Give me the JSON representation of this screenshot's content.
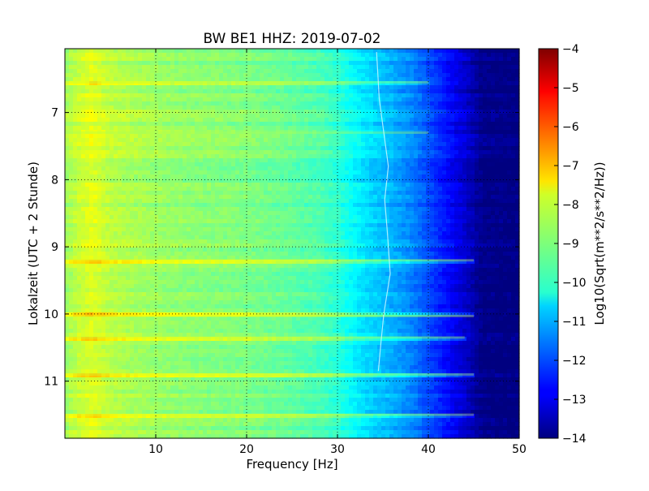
{
  "chart_data": {
    "type": "heatmap",
    "title": "BW BE1 HHZ: 2019-07-02",
    "xlabel": "Frequency [Hz]",
    "ylabel": "Lokalzeit (UTC + 2 Stunde)",
    "xlim": [
      0,
      50
    ],
    "ylim": [
      6.05,
      11.85
    ],
    "y_inverted": true,
    "x_ticks": [
      10,
      20,
      30,
      40,
      50
    ],
    "x_tick_labels": [
      "10",
      "20",
      "30",
      "40",
      "50"
    ],
    "y_ticks": [
      7,
      8,
      9,
      10,
      11
    ],
    "y_tick_labels": [
      "7",
      "8",
      "9",
      "10",
      "11"
    ],
    "grid": true,
    "colormap": "jet",
    "colorbar": {
      "label": "Log10(Sqrt(m**2/s**2/Hz))",
      "range": [
        -14,
        -4
      ],
      "ticks": [
        -4,
        -5,
        -6,
        -7,
        -8,
        -9,
        -10,
        -11,
        -12,
        -13,
        -14
      ],
      "tick_labels": [
        "−4",
        "−5",
        "−6",
        "−7",
        "−8",
        "−9",
        "−10",
        "−11",
        "−12",
        "−13",
        "−14"
      ]
    },
    "spectral_profile": {
      "frequency_hz": [
        0,
        1,
        2,
        3,
        5,
        8,
        12,
        16,
        20,
        24,
        28,
        30,
        32,
        34,
        36,
        38,
        40,
        42,
        44,
        46,
        50
      ],
      "log10_psd": [
        -8.7,
        -8.4,
        -8.2,
        -8.0,
        -8.4,
        -8.6,
        -8.8,
        -8.9,
        -9.0,
        -9.2,
        -9.5,
        -9.8,
        -10.3,
        -10.7,
        -11.0,
        -11.4,
        -12.0,
        -12.6,
        -13.2,
        -13.9,
        -14.0
      ]
    },
    "bands": [
      {
        "time_h": 9.2,
        "delta": 0.9,
        "fmax_hz": 45
      },
      {
        "time_h": 10.03,
        "delta": 1.0,
        "fmax_hz": 45
      },
      {
        "time_h": 10.9,
        "delta": 0.7,
        "fmax_hz": 45
      },
      {
        "time_h": 11.5,
        "delta": 0.8,
        "fmax_hz": 45
      },
      {
        "time_h": 6.55,
        "delta": 0.5,
        "fmax_hz": 40
      },
      {
        "time_h": 7.3,
        "delta": 0.4,
        "fmax_hz": 40
      },
      {
        "time_h": 10.35,
        "delta": 0.6,
        "fmax_hz": 44
      }
    ],
    "line_feature": {
      "time_h": [
        6.1,
        6.8,
        7.4,
        7.8,
        8.3,
        8.8,
        9.4,
        10.0,
        10.4,
        10.85
      ],
      "frequency_hz": [
        34.3,
        34.6,
        35.2,
        35.6,
        35.2,
        35.5,
        35.8,
        35.1,
        34.8,
        34.5
      ]
    }
  }
}
